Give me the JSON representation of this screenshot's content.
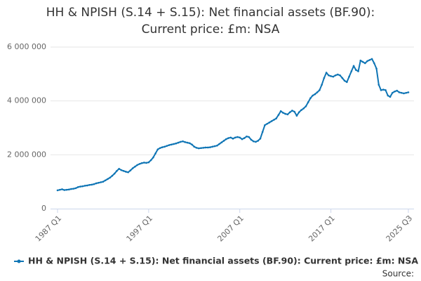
{
  "chart_data": {
    "type": "line",
    "title": "HH & NPISH (S.14 + S.15): Net financial assets (BF.90): Current price: £m: NSA",
    "source": "Source:",
    "categories": [
      "1987 Q1",
      null,
      null,
      null,
      null,
      null,
      null,
      null,
      null,
      null,
      null,
      null,
      null,
      null,
      null,
      null,
      null,
      null,
      null,
      null,
      null,
      null,
      null,
      null,
      null,
      null,
      null,
      null,
      null,
      null,
      null,
      null,
      null,
      null,
      null,
      null,
      null,
      null,
      null,
      null,
      "1997 Q1",
      null,
      null,
      null,
      null,
      null,
      null,
      null,
      null,
      null,
      null,
      null,
      null,
      null,
      null,
      null,
      null,
      null,
      null,
      null,
      null,
      null,
      null,
      null,
      null,
      null,
      null,
      null,
      null,
      null,
      null,
      null,
      null,
      null,
      null,
      null,
      null,
      null,
      null,
      null,
      "2007 Q1",
      null,
      null,
      null,
      null,
      null,
      null,
      null,
      null,
      null,
      null,
      null,
      null,
      null,
      null,
      null,
      null,
      null,
      null,
      null,
      null,
      null,
      null,
      null,
      null,
      null,
      null,
      null,
      null,
      null,
      null,
      null,
      null,
      null,
      null,
      null,
      null,
      null,
      null,
      null,
      "2017 Q1",
      null,
      null,
      null,
      null,
      null,
      null,
      null,
      null,
      null,
      null,
      null,
      null,
      null,
      null,
      null,
      null,
      null,
      null,
      null,
      null,
      null,
      null,
      null,
      null,
      null,
      null,
      null,
      null,
      null,
      null,
      null,
      null,
      null,
      "2025 Q3"
    ],
    "series": [
      {
        "name": "HH & NPISH (S.14 + S.15): Net financial assets (BF.90): Current price: £m: NSA",
        "color": "#0f75b5",
        "values": [
          680000,
          700000,
          720000,
          690000,
          700000,
          710000,
          730000,
          740000,
          760000,
          800000,
          820000,
          830000,
          850000,
          860000,
          880000,
          890000,
          910000,
          940000,
          960000,
          980000,
          1000000,
          1050000,
          1100000,
          1150000,
          1220000,
          1300000,
          1400000,
          1480000,
          1430000,
          1400000,
          1370000,
          1350000,
          1420000,
          1500000,
          1560000,
          1620000,
          1660000,
          1690000,
          1710000,
          1700000,
          1720000,
          1800000,
          1900000,
          2050000,
          2200000,
          2250000,
          2280000,
          2300000,
          2330000,
          2360000,
          2380000,
          2400000,
          2420000,
          2450000,
          2480000,
          2500000,
          2470000,
          2450000,
          2430000,
          2380000,
          2300000,
          2260000,
          2240000,
          2250000,
          2260000,
          2270000,
          2270000,
          2280000,
          2300000,
          2320000,
          2340000,
          2400000,
          2460000,
          2520000,
          2580000,
          2620000,
          2640000,
          2600000,
          2640000,
          2660000,
          2640000,
          2580000,
          2620000,
          2680000,
          2660000,
          2560000,
          2500000,
          2480000,
          2520000,
          2600000,
          2850000,
          3100000,
          3150000,
          3200000,
          3250000,
          3300000,
          3350000,
          3480000,
          3620000,
          3560000,
          3520000,
          3500000,
          3580000,
          3640000,
          3600000,
          3450000,
          3580000,
          3660000,
          3720000,
          3800000,
          3950000,
          4100000,
          4200000,
          4250000,
          4320000,
          4400000,
          4600000,
          4850000,
          5050000,
          4950000,
          4920000,
          4900000,
          4950000,
          4980000,
          4950000,
          4850000,
          4750000,
          4700000,
          4900000,
          5100000,
          5300000,
          5150000,
          5100000,
          5500000,
          5450000,
          5400000,
          5480000,
          5520000,
          5560000,
          5400000,
          5200000,
          4600000,
          4400000,
          4420000,
          4400000,
          4200000,
          4150000,
          4300000,
          4350000,
          4380000,
          4320000,
          4300000,
          4280000,
          4300000,
          4320000
        ]
      }
    ],
    "ylim": [
      0,
      6000000
    ],
    "yticks": [
      0,
      {
        "value": 2000000,
        "label": "2 000 000"
      },
      {
        "value": 4000000,
        "label": "4 000 000"
      },
      {
        "value": 6000000,
        "label": "6 000 000"
      }
    ],
    "grid": true
  }
}
